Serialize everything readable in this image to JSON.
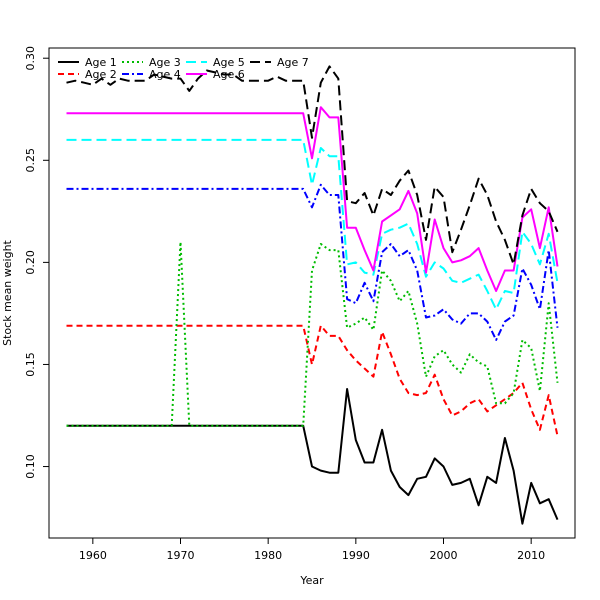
{
  "chart_data": {
    "type": "line",
    "xlabel": "Year",
    "ylabel": "Stock mean weight",
    "xlim": [
      1955,
      2015
    ],
    "ylim": [
      0.065,
      0.305
    ],
    "x_ticks": [
      1960,
      1970,
      1980,
      1990,
      2000,
      2010
    ],
    "y_ticks": [
      0.1,
      0.15,
      0.2,
      0.25,
      0.3
    ],
    "y_tick_labels": [
      "0.10",
      "0.15",
      "0.20",
      "0.25",
      "0.30"
    ],
    "grid": false,
    "legend_position": "top-left",
    "years": [
      1957,
      1958,
      1959,
      1960,
      1961,
      1962,
      1963,
      1964,
      1965,
      1966,
      1967,
      1968,
      1969,
      1970,
      1971,
      1972,
      1973,
      1974,
      1975,
      1976,
      1977,
      1978,
      1979,
      1980,
      1981,
      1982,
      1983,
      1984,
      1985,
      1986,
      1987,
      1988,
      1989,
      1990,
      1991,
      1992,
      1993,
      1994,
      1995,
      1996,
      1997,
      1998,
      1999,
      2000,
      2001,
      2002,
      2003,
      2004,
      2005,
      2006,
      2007,
      2008,
      2009,
      2010,
      2011,
      2012,
      2013
    ],
    "series": [
      {
        "name": "Age 1",
        "color": "#000000",
        "dash": "solid",
        "values": [
          0.12,
          0.12,
          0.12,
          0.12,
          0.12,
          0.12,
          0.12,
          0.12,
          0.12,
          0.12,
          0.12,
          0.12,
          0.12,
          0.12,
          0.12,
          0.12,
          0.12,
          0.12,
          0.12,
          0.12,
          0.12,
          0.12,
          0.12,
          0.12,
          0.12,
          0.12,
          0.12,
          0.12,
          0.1,
          0.098,
          0.097,
          0.097,
          0.138,
          0.113,
          0.102,
          0.102,
          0.118,
          0.098,
          0.09,
          0.086,
          0.094,
          0.095,
          0.104,
          0.1,
          0.091,
          0.092,
          0.094,
          0.081,
          0.095,
          0.092,
          0.114,
          0.098,
          0.072,
          0.092,
          0.082,
          0.084,
          0.074
        ]
      },
      {
        "name": "Age 2",
        "color": "#ff0000",
        "dash": "dashed",
        "values": [
          0.169,
          0.169,
          0.169,
          0.169,
          0.169,
          0.169,
          0.169,
          0.169,
          0.169,
          0.169,
          0.169,
          0.169,
          0.169,
          0.169,
          0.169,
          0.169,
          0.169,
          0.169,
          0.169,
          0.169,
          0.169,
          0.169,
          0.169,
          0.169,
          0.169,
          0.169,
          0.169,
          0.169,
          0.15,
          0.169,
          0.164,
          0.164,
          0.157,
          0.152,
          0.148,
          0.144,
          0.166,
          0.155,
          0.143,
          0.136,
          0.135,
          0.136,
          0.145,
          0.133,
          0.125,
          0.127,
          0.131,
          0.133,
          0.127,
          0.13,
          0.133,
          0.136,
          0.141,
          0.128,
          0.118,
          0.135,
          0.115
        ]
      },
      {
        "name": "Age 3",
        "color": "#00bb00",
        "dash": "dotted",
        "values": [
          0.12,
          0.12,
          0.12,
          0.12,
          0.12,
          0.12,
          0.12,
          0.12,
          0.12,
          0.12,
          0.12,
          0.12,
          0.12,
          0.21,
          0.12,
          0.12,
          0.12,
          0.12,
          0.12,
          0.12,
          0.12,
          0.12,
          0.12,
          0.12,
          0.12,
          0.12,
          0.12,
          0.12,
          0.196,
          0.209,
          0.206,
          0.206,
          0.168,
          0.17,
          0.173,
          0.167,
          0.196,
          0.191,
          0.181,
          0.186,
          0.17,
          0.144,
          0.154,
          0.157,
          0.15,
          0.146,
          0.155,
          0.151,
          0.149,
          0.131,
          0.131,
          0.136,
          0.162,
          0.158,
          0.137,
          0.18,
          0.141
        ]
      },
      {
        "name": "Age 4",
        "color": "#0000ff",
        "dash": "dashdot",
        "values": [
          0.236,
          0.236,
          0.236,
          0.236,
          0.236,
          0.236,
          0.236,
          0.236,
          0.236,
          0.236,
          0.236,
          0.236,
          0.236,
          0.236,
          0.236,
          0.236,
          0.236,
          0.236,
          0.236,
          0.236,
          0.236,
          0.236,
          0.236,
          0.236,
          0.236,
          0.236,
          0.236,
          0.236,
          0.227,
          0.238,
          0.233,
          0.233,
          0.182,
          0.18,
          0.19,
          0.181,
          0.205,
          0.209,
          0.203,
          0.206,
          0.196,
          0.173,
          0.174,
          0.177,
          0.172,
          0.17,
          0.175,
          0.175,
          0.171,
          0.162,
          0.171,
          0.174,
          0.197,
          0.189,
          0.177,
          0.206,
          0.168
        ]
      },
      {
        "name": "Age 5",
        "color": "#00ffff",
        "dash": "longdash",
        "values": [
          0.26,
          0.26,
          0.26,
          0.26,
          0.26,
          0.26,
          0.26,
          0.26,
          0.26,
          0.26,
          0.26,
          0.26,
          0.26,
          0.26,
          0.26,
          0.26,
          0.26,
          0.26,
          0.26,
          0.26,
          0.26,
          0.26,
          0.26,
          0.26,
          0.26,
          0.26,
          0.26,
          0.26,
          0.238,
          0.256,
          0.252,
          0.252,
          0.199,
          0.2,
          0.195,
          0.194,
          0.214,
          0.216,
          0.217,
          0.219,
          0.209,
          0.193,
          0.2,
          0.197,
          0.191,
          0.19,
          0.192,
          0.194,
          0.186,
          0.177,
          0.186,
          0.185,
          0.215,
          0.209,
          0.199,
          0.214,
          0.19
        ]
      },
      {
        "name": "Age 6",
        "color": "#ff00ff",
        "dash": "solid",
        "values": [
          0.273,
          0.273,
          0.273,
          0.273,
          0.273,
          0.273,
          0.273,
          0.273,
          0.273,
          0.273,
          0.273,
          0.273,
          0.273,
          0.273,
          0.273,
          0.273,
          0.273,
          0.273,
          0.273,
          0.273,
          0.273,
          0.273,
          0.273,
          0.273,
          0.273,
          0.273,
          0.273,
          0.273,
          0.251,
          0.276,
          0.271,
          0.271,
          0.217,
          0.217,
          0.206,
          0.196,
          0.22,
          0.223,
          0.226,
          0.235,
          0.224,
          0.195,
          0.221,
          0.207,
          0.2,
          0.201,
          0.203,
          0.207,
          0.196,
          0.186,
          0.196,
          0.196,
          0.222,
          0.226,
          0.207,
          0.227,
          0.198
        ]
      },
      {
        "name": "Age 7",
        "color": "#000000",
        "dash": "longdash",
        "values": [
          0.288,
          0.289,
          0.288,
          0.287,
          0.29,
          0.287,
          0.29,
          0.289,
          0.289,
          0.289,
          0.292,
          0.291,
          0.29,
          0.29,
          0.284,
          0.29,
          0.294,
          0.293,
          0.292,
          0.292,
          0.289,
          0.289,
          0.289,
          0.289,
          0.291,
          0.289,
          0.289,
          0.289,
          0.261,
          0.288,
          0.296,
          0.29,
          0.23,
          0.229,
          0.234,
          0.223,
          0.236,
          0.233,
          0.24,
          0.245,
          0.233,
          0.211,
          0.237,
          0.232,
          0.205,
          0.216,
          0.228,
          0.241,
          0.233,
          0.22,
          0.211,
          0.199,
          0.223,
          0.236,
          0.229,
          0.225,
          0.215
        ]
      }
    ]
  }
}
